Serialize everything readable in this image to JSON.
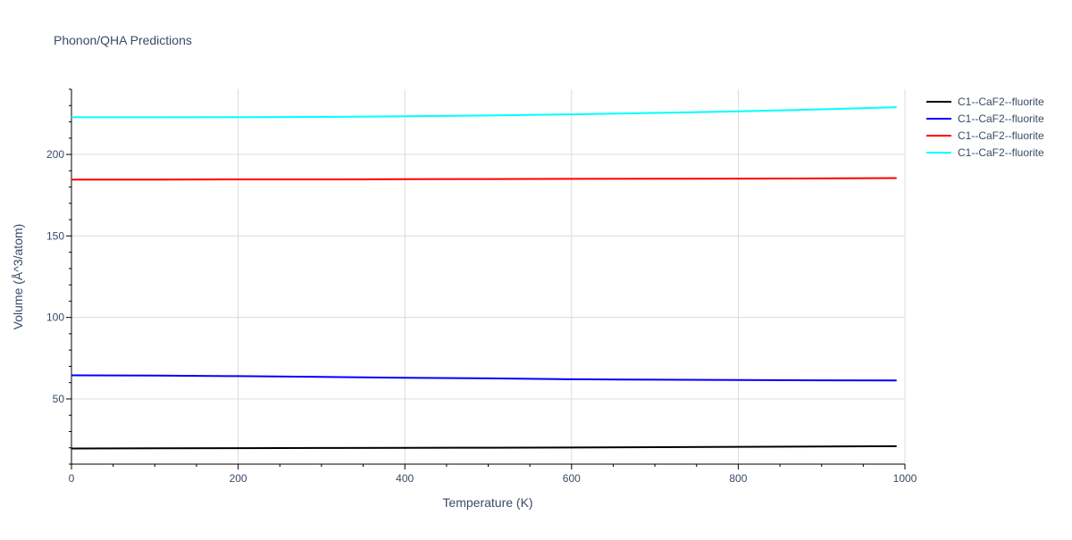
{
  "chart_data": {
    "type": "line",
    "title": "Phonon/QHA Predictions",
    "xlabel": "Temperature (K)",
    "ylabel": "Volume (Å^3/atom)",
    "xlim": [
      0,
      1000
    ],
    "ylim": [
      10,
      240
    ],
    "xticks": [
      0,
      200,
      400,
      600,
      800,
      1000
    ],
    "yticks": [
      50,
      100,
      150,
      200
    ],
    "grid": true,
    "legend_position": "top-right",
    "series": [
      {
        "name": "C1--CaF2--fluorite",
        "color": "#000000",
        "x": [
          0,
          100,
          200,
          300,
          400,
          500,
          600,
          700,
          800,
          900,
          990
        ],
        "y": [
          19.6,
          19.7,
          19.8,
          19.9,
          20.0,
          20.1,
          20.2,
          20.4,
          20.6,
          20.8,
          21.0
        ]
      },
      {
        "name": "C1--CaF2--fluorite",
        "color": "#0000ff",
        "x": [
          0,
          100,
          200,
          300,
          400,
          500,
          600,
          660,
          700,
          800,
          900,
          990
        ],
        "y": [
          64.5,
          64.3,
          64.0,
          63.5,
          63.0,
          62.6,
          62.1,
          61.9,
          61.8,
          61.6,
          61.4,
          61.3
        ]
      },
      {
        "name": "C1--CaF2--fluorite",
        "color": "#ff0000",
        "x": [
          0,
          100,
          200,
          300,
          400,
          500,
          600,
          700,
          800,
          900,
          990
        ],
        "y": [
          184.6,
          184.6,
          184.7,
          184.7,
          184.8,
          184.9,
          185.0,
          185.1,
          185.2,
          185.3,
          185.5
        ]
      },
      {
        "name": "C1--CaF2--fluorite",
        "color": "#00ffff",
        "x": [
          0,
          100,
          200,
          300,
          400,
          500,
          600,
          700,
          800,
          900,
          990
        ],
        "y": [
          222.8,
          222.8,
          222.9,
          223.0,
          223.4,
          223.9,
          224.6,
          225.5,
          226.4,
          227.7,
          229.0
        ]
      }
    ]
  }
}
